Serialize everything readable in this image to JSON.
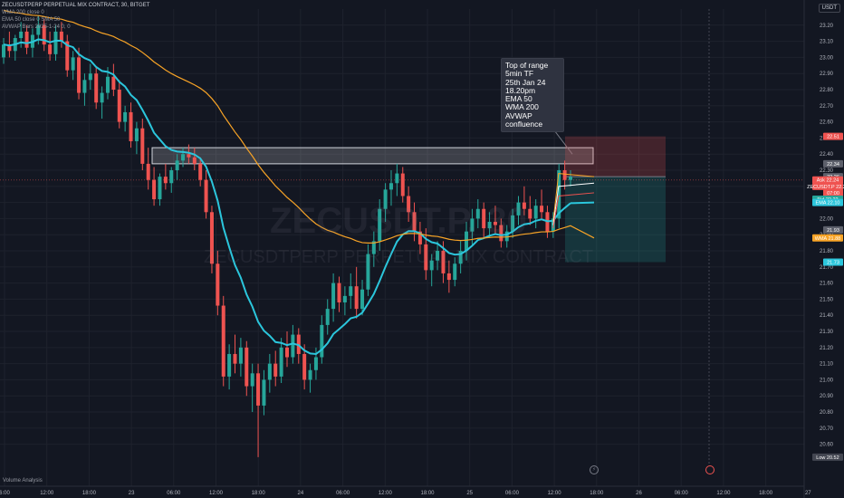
{
  "legend": {
    "symbol": "ZECUSDTPERP PERPETUAL MIX CONTRACT, 30, BITGET",
    "wma": "WMA 200 close 0",
    "ema": "EMA 50 close 0 SMA 50",
    "avwap": "AVWAP Bars 2025-1-24 0, 0"
  },
  "currency": "USDT",
  "watermark": {
    "ticker": "ZECUSDT.P, 30",
    "subtitle": "ZECUSDTPERP PERPETUAL MIX CONTRACT"
  },
  "annotation": "Top of range\n5min TF\n25th Jan 24\n18.20pm\nEMA 50\nWMA 200\nAVWAP\nconfluence",
  "volume_label": "Volume Analysis",
  "colors": {
    "bull": "#26a69a",
    "bear": "#ef5350",
    "ema": "#2bc6dc",
    "wma": "#f7a326",
    "avwap": "#ffffff",
    "bg": "#131722"
  },
  "chart_data": {
    "type": "candlestick",
    "title": "ZECUSDTPERP PERPETUAL MIX CONTRACT, 30, BITGET",
    "ylim": [
      20.48,
      23.3
    ],
    "y_ticks": [
      "23.20",
      "23.10",
      "23.00",
      "22.90",
      "22.80",
      "22.70",
      "22.60",
      "22.50",
      "22.40",
      "22.30",
      "22.20",
      "22.10",
      "22.00",
      "21.90",
      "21.80",
      "21.70",
      "21.60",
      "21.50",
      "21.40",
      "21.30",
      "21.20",
      "21.10",
      "21.00",
      "20.90",
      "20.80",
      "20.70",
      "20.60"
    ],
    "x_ticks": [
      "6:00",
      "12:00",
      "18:00",
      "23",
      "06:00",
      "12:00",
      "18:00",
      "24",
      "06:00",
      "12:00",
      "18:00",
      "25",
      "06:00",
      "12:00",
      "18:00",
      "26",
      "06:00",
      "12:00",
      "18:00",
      "27"
    ],
    "price_tags": [
      {
        "label": "22.51",
        "value": 22.51,
        "color": "#ef5350"
      },
      {
        "label": "22.34",
        "value": 22.34,
        "color": "#5d606b"
      },
      {
        "label": "22.26",
        "value": 22.26,
        "color": "#5d606b"
      },
      {
        "label": "Ask 22.24",
        "value": 22.24,
        "color": "#ef5350"
      },
      {
        "label": "ZECUSDT.P 22.24",
        "value": 22.2,
        "color": "#ef5350"
      },
      {
        "label": "07:00",
        "value": 22.16,
        "color": "#ef5350"
      },
      {
        "label": "Bid 22.22",
        "value": 22.12,
        "color": "#26a69a"
      },
      {
        "label": "EMA 22.10",
        "value": 22.1,
        "color": "#2bc6dc"
      },
      {
        "label": "21.93",
        "value": 21.93,
        "color": "#5d606b"
      },
      {
        "label": "WMA 21.88",
        "value": 21.88,
        "color": "#f7a326"
      },
      {
        "label": "21.73",
        "value": 21.73,
        "color": "#2bc6dc"
      },
      {
        "label": "Low 20.52",
        "value": 20.52,
        "color": "#434651"
      }
    ],
    "zone": {
      "top": 22.44,
      "bottom": 22.34
    },
    "position": {
      "entry": 22.26,
      "stop": 22.51,
      "target": 21.73
    },
    "candles": [
      [
        23.0,
        23.12,
        22.96,
        23.08
      ],
      [
        23.08,
        23.16,
        23.0,
        23.04
      ],
      [
        23.04,
        23.14,
        22.98,
        23.12
      ],
      [
        23.12,
        23.22,
        23.06,
        23.16
      ],
      [
        23.16,
        23.2,
        23.02,
        23.06
      ],
      [
        23.06,
        23.18,
        23.0,
        23.14
      ],
      [
        23.14,
        23.26,
        23.08,
        23.2
      ],
      [
        23.2,
        23.24,
        23.04,
        23.08
      ],
      [
        23.08,
        23.16,
        22.98,
        23.02
      ],
      [
        23.02,
        23.2,
        22.98,
        23.16
      ],
      [
        23.16,
        23.22,
        23.06,
        23.1
      ],
      [
        23.1,
        23.14,
        22.88,
        22.92
      ],
      [
        22.92,
        23.04,
        22.86,
        23.0
      ],
      [
        23.0,
        23.06,
        22.74,
        22.78
      ],
      [
        22.78,
        22.9,
        22.7,
        22.86
      ],
      [
        22.86,
        22.96,
        22.8,
        22.9
      ],
      [
        22.9,
        22.94,
        22.68,
        22.72
      ],
      [
        22.72,
        22.82,
        22.62,
        22.78
      ],
      [
        22.78,
        22.94,
        22.74,
        22.88
      ],
      [
        22.88,
        22.96,
        22.76,
        22.8
      ],
      [
        22.8,
        22.86,
        22.56,
        22.6
      ],
      [
        22.6,
        22.7,
        22.54,
        22.66
      ],
      [
        22.66,
        22.72,
        22.44,
        22.48
      ],
      [
        22.48,
        22.6,
        22.4,
        22.56
      ],
      [
        22.56,
        22.62,
        22.3,
        22.34
      ],
      [
        22.34,
        22.44,
        22.18,
        22.24
      ],
      [
        22.24,
        22.32,
        22.08,
        22.12
      ],
      [
        22.12,
        22.28,
        22.08,
        22.26
      ],
      [
        22.26,
        22.34,
        22.18,
        22.22
      ],
      [
        22.22,
        22.32,
        22.16,
        22.3
      ],
      [
        22.3,
        22.4,
        22.24,
        22.36
      ],
      [
        22.36,
        22.44,
        22.32,
        22.4
      ],
      [
        22.4,
        22.46,
        22.34,
        22.38
      ],
      [
        22.38,
        22.44,
        22.3,
        22.34
      ],
      [
        22.34,
        22.38,
        22.2,
        22.24
      ],
      [
        22.24,
        22.3,
        22.0,
        22.04
      ],
      [
        22.04,
        22.08,
        21.66,
        21.72
      ],
      [
        21.72,
        21.8,
        21.4,
        21.46
      ],
      [
        21.46,
        21.52,
        20.96,
        21.02
      ],
      [
        21.02,
        21.22,
        20.94,
        21.16
      ],
      [
        21.16,
        21.28,
        21.04,
        21.1
      ],
      [
        21.1,
        21.26,
        21.02,
        21.2
      ],
      [
        21.2,
        21.24,
        20.9,
        20.96
      ],
      [
        20.96,
        21.1,
        20.8,
        21.04
      ],
      [
        21.04,
        21.1,
        20.52,
        20.84
      ],
      [
        20.84,
        21.06,
        20.78,
        21.0
      ],
      [
        21.0,
        21.16,
        20.92,
        21.1
      ],
      [
        21.1,
        21.18,
        20.96,
        21.02
      ],
      [
        21.02,
        21.26,
        20.98,
        21.2
      ],
      [
        21.2,
        21.3,
        21.08,
        21.14
      ],
      [
        21.14,
        21.34,
        21.1,
        21.28
      ],
      [
        21.28,
        21.32,
        21.1,
        21.16
      ],
      [
        21.16,
        21.22,
        20.94,
        21.0
      ],
      [
        21.0,
        21.1,
        20.92,
        21.06
      ],
      [
        21.06,
        21.2,
        21.0,
        21.14
      ],
      [
        21.14,
        21.4,
        21.1,
        21.34
      ],
      [
        21.34,
        21.5,
        21.28,
        21.44
      ],
      [
        21.44,
        21.66,
        21.36,
        21.6
      ],
      [
        21.6,
        21.64,
        21.42,
        21.48
      ],
      [
        21.48,
        21.58,
        21.4,
        21.52
      ],
      [
        21.52,
        21.66,
        21.44,
        21.58
      ],
      [
        21.58,
        21.7,
        21.38,
        21.44
      ],
      [
        21.44,
        21.62,
        21.4,
        21.56
      ],
      [
        21.56,
        21.84,
        21.52,
        21.78
      ],
      [
        21.78,
        21.92,
        21.7,
        21.86
      ],
      [
        21.86,
        22.12,
        21.8,
        22.06
      ],
      [
        22.06,
        22.22,
        21.98,
        22.18
      ],
      [
        22.18,
        22.3,
        22.08,
        22.22
      ],
      [
        22.22,
        22.34,
        22.14,
        22.28
      ],
      [
        22.28,
        22.32,
        22.1,
        22.14
      ],
      [
        22.14,
        22.2,
        21.98,
        22.04
      ],
      [
        22.04,
        22.1,
        21.86,
        21.92
      ],
      [
        21.92,
        21.98,
        21.78,
        21.84
      ],
      [
        21.84,
        21.94,
        21.62,
        21.68
      ],
      [
        21.68,
        21.78,
        21.58,
        21.74
      ],
      [
        21.74,
        21.86,
        21.68,
        21.8
      ],
      [
        21.8,
        21.86,
        21.6,
        21.66
      ],
      [
        21.66,
        21.74,
        21.54,
        21.62
      ],
      [
        21.62,
        21.76,
        21.58,
        21.72
      ],
      [
        21.72,
        21.86,
        21.66,
        21.8
      ],
      [
        21.8,
        21.98,
        21.74,
        21.92
      ],
      [
        21.92,
        22.06,
        21.84,
        22.0
      ],
      [
        22.0,
        22.12,
        21.94,
        22.06
      ],
      [
        22.06,
        22.1,
        21.88,
        21.94
      ],
      [
        21.94,
        22.04,
        21.88,
        21.98
      ],
      [
        21.98,
        22.08,
        21.9,
        21.96
      ],
      [
        21.96,
        22.0,
        21.82,
        21.86
      ],
      [
        21.86,
        21.96,
        21.82,
        21.92
      ],
      [
        21.92,
        22.06,
        21.88,
        22.02
      ],
      [
        22.02,
        22.14,
        21.96,
        22.1
      ],
      [
        22.1,
        22.2,
        22.02,
        22.06
      ],
      [
        22.06,
        22.14,
        21.96,
        22.0
      ],
      [
        22.0,
        22.12,
        21.94,
        22.08
      ],
      [
        22.08,
        22.18,
        22.0,
        22.04
      ],
      [
        22.04,
        22.08,
        21.88,
        21.92
      ],
      [
        21.92,
        22.04,
        21.88,
        22.0
      ],
      [
        22.0,
        22.34,
        21.94,
        22.3
      ],
      [
        22.3,
        22.36,
        22.18,
        22.24
      ],
      [
        22.24,
        22.3,
        22.2,
        22.26
      ]
    ]
  }
}
